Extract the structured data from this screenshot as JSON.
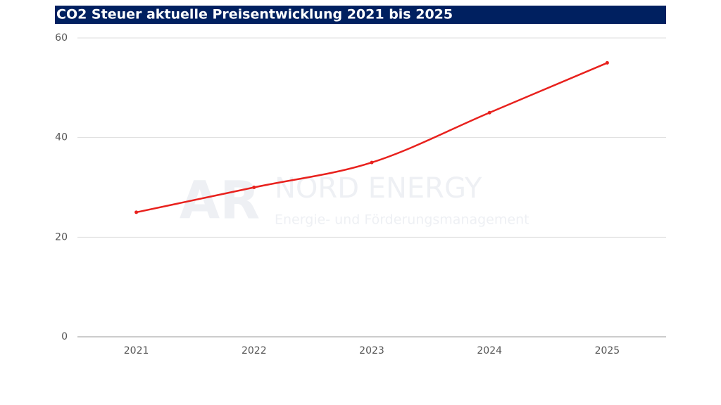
{
  "chart_data": {
    "type": "line",
    "title": "CO2 Steuer aktuelle Preisentwicklung 2021 bis 2025",
    "categories": [
      "2021",
      "2022",
      "2023",
      "2024",
      "2025"
    ],
    "values": [
      25,
      30,
      35,
      45,
      55
    ],
    "color": "#e8211d",
    "ylim": [
      0,
      60
    ],
    "yticks": [
      0,
      20,
      40,
      60
    ],
    "grid": true,
    "annotations": [
      "AR",
      "NORD ENERGY",
      "Energie- und Förderungsmanagement"
    ]
  }
}
